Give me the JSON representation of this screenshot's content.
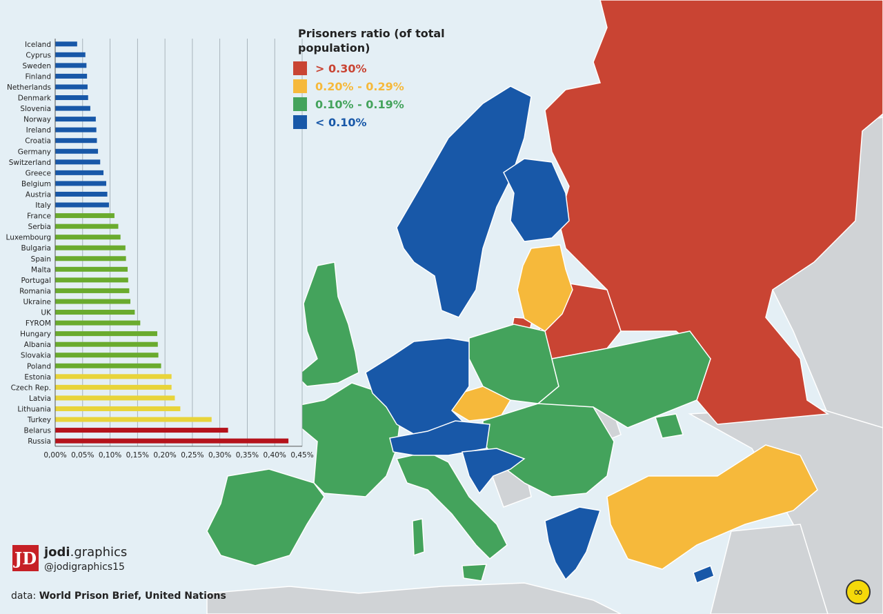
{
  "legend": {
    "title": "Prisoners ratio (of total population)",
    "items": [
      {
        "label": "> 0.30%",
        "color": "#c94433"
      },
      {
        "label": "0.20% - 0.29%",
        "color": "#f6b93b"
      },
      {
        "label": "0.10% - 0.19%",
        "color": "#44a35c"
      },
      {
        "label": "< 0.10%",
        "color": "#1858a8"
      }
    ]
  },
  "chart_data": {
    "type": "bar",
    "orientation": "horizontal",
    "categories": [
      "Iceland",
      "Cyprus",
      "Sweden",
      "Finland",
      "Netherlands",
      "Denmark",
      "Slovenia",
      "Norway",
      "Ireland",
      "Croatia",
      "Germany",
      "Switzerland",
      "Greece",
      "Belgium",
      "Austria",
      "Italy",
      "France",
      "Serbia",
      "Luxembourg",
      "Bulgaria",
      "Spain",
      "Malta",
      "Portugal",
      "Romania",
      "Ukraine",
      "UK",
      "FYROM",
      "Hungary",
      "Albania",
      "Slovakia",
      "Poland",
      "Estonia",
      "Czech Rep.",
      "Latvia",
      "Lithuania",
      "Turkey",
      "Belarus",
      "Russia"
    ],
    "values": [
      0.04,
      0.055,
      0.057,
      0.058,
      0.059,
      0.06,
      0.064,
      0.074,
      0.075,
      0.076,
      0.078,
      0.082,
      0.088,
      0.093,
      0.095,
      0.098,
      0.108,
      0.115,
      0.119,
      0.128,
      0.129,
      0.132,
      0.133,
      0.135,
      0.137,
      0.145,
      0.155,
      0.186,
      0.187,
      0.188,
      0.193,
      0.212,
      0.212,
      0.218,
      0.228,
      0.285,
      0.315,
      0.425
    ],
    "bar_colors": [
      "#1858a8",
      "#1858a8",
      "#1858a8",
      "#1858a8",
      "#1858a8",
      "#1858a8",
      "#1858a8",
      "#1858a8",
      "#1858a8",
      "#1858a8",
      "#1858a8",
      "#1858a8",
      "#1858a8",
      "#1858a8",
      "#1858a8",
      "#1858a8",
      "#6aab2e",
      "#6aab2e",
      "#6aab2e",
      "#6aab2e",
      "#6aab2e",
      "#6aab2e",
      "#6aab2e",
      "#6aab2e",
      "#6aab2e",
      "#6aab2e",
      "#6aab2e",
      "#6aab2e",
      "#6aab2e",
      "#6aab2e",
      "#6aab2e",
      "#e8d43a",
      "#e8d43a",
      "#e8d43a",
      "#e8d43a",
      "#e8d43a",
      "#b5121b",
      "#b5121b"
    ],
    "xlim": [
      0,
      0.45
    ],
    "ticks": [
      "0,00%",
      "0,05%",
      "0,10%",
      "0,15%",
      "0,20%",
      "0,25%",
      "0,30%",
      "0,35%",
      "0,40%",
      "0,45%"
    ],
    "grid": true
  },
  "branding": {
    "logo_text": "JD",
    "name_bold": "jodi",
    "name_rest": ".graphics",
    "handle": "@jodigraphics15"
  },
  "source": {
    "prefix": "data: ",
    "text": "World Prison Brief, United Nations"
  },
  "corner_icon": "infinity-badge-icon",
  "corner_glyph": "∞"
}
